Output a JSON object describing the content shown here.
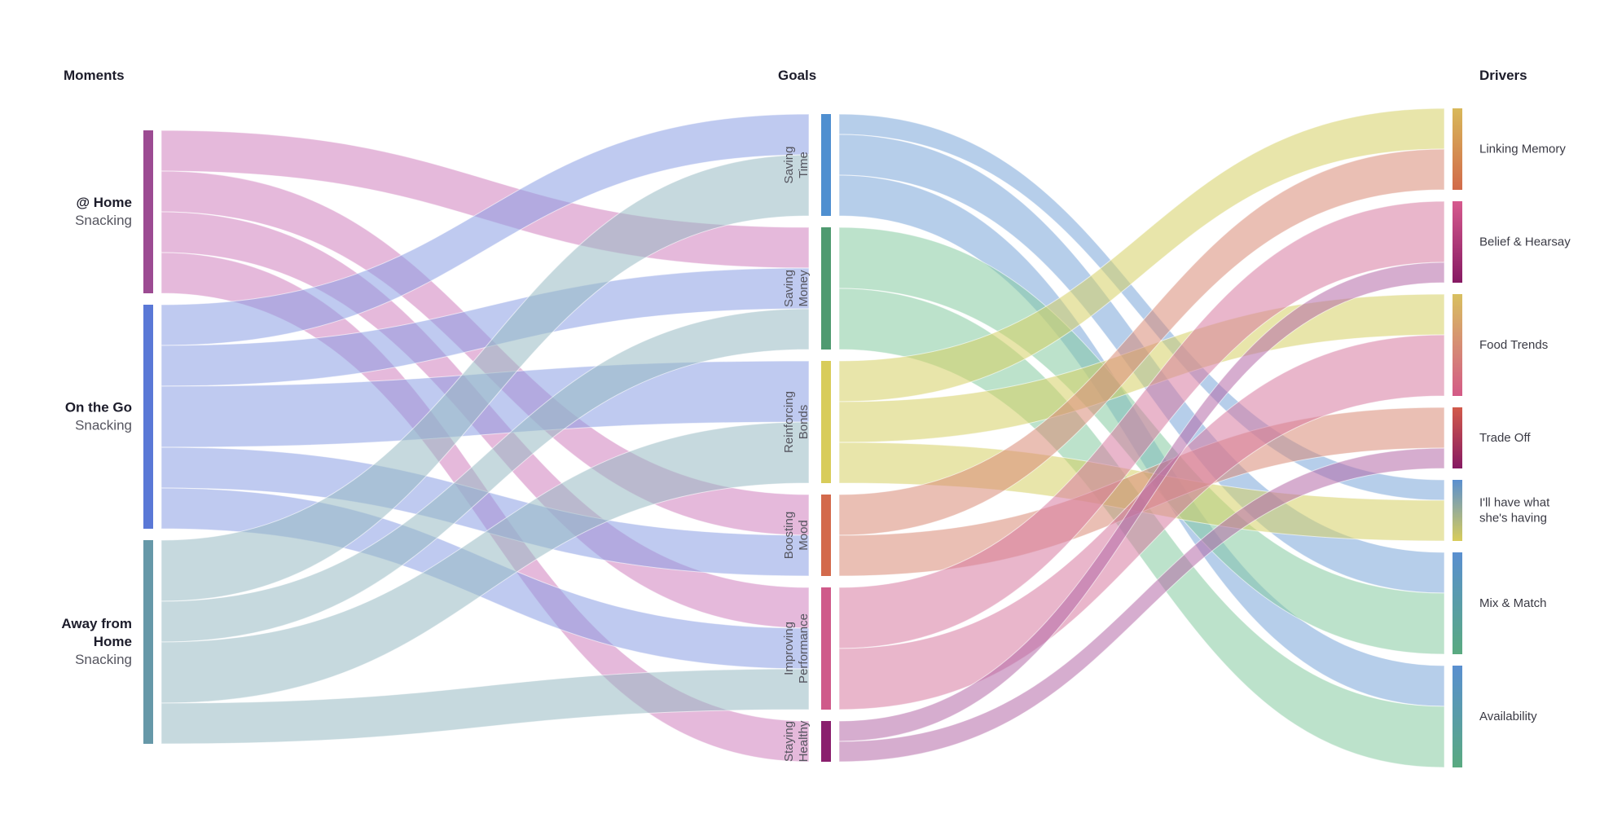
{
  "headers": {
    "moments": "Moments",
    "goals": "Goals",
    "drivers": "Drivers"
  },
  "moments": [
    {
      "id": "home",
      "lines": [
        "@ Home",
        "Snacking"
      ],
      "color": "#9c4b92"
    },
    {
      "id": "go",
      "lines": [
        "On the Go",
        "Snacking"
      ],
      "color": "#5a78d6"
    },
    {
      "id": "away",
      "lines": [
        "Away from",
        "Home",
        "Snacking"
      ],
      "color": "#6698a8"
    }
  ],
  "goals": [
    {
      "id": "time",
      "lines": [
        "Saving",
        "Time"
      ],
      "color": "#4f8fd0"
    },
    {
      "id": "money",
      "lines": [
        "Saving",
        "Money"
      ],
      "color": "#4f9a70"
    },
    {
      "id": "bonds",
      "lines": [
        "Reinforcing",
        "Bonds"
      ],
      "color": "#d8cc5a"
    },
    {
      "id": "mood",
      "lines": [
        "Boosting",
        "Mood"
      ],
      "color": "#d36a4c"
    },
    {
      "id": "perf",
      "lines": [
        "Improving",
        "Performance"
      ],
      "color": "#cf5a8a"
    },
    {
      "id": "health",
      "lines": [
        "Staying",
        "Healthy"
      ],
      "color": "#8a1f6e"
    }
  ],
  "drivers": [
    {
      "id": "linking",
      "lines": [
        "Linking Memory"
      ],
      "colors": [
        "#d8b85a",
        "#d16a4a"
      ]
    },
    {
      "id": "belief",
      "lines": [
        "Belief & Hearsay"
      ],
      "colors": [
        "#d65a8e",
        "#861a63"
      ]
    },
    {
      "id": "trends",
      "lines": [
        "Food Trends"
      ],
      "colors": [
        "#d8c060",
        "#d35a87"
      ]
    },
    {
      "id": "tradeoff",
      "lines": [
        "Trade Off"
      ],
      "colors": [
        "#d25a4a",
        "#861a63"
      ]
    },
    {
      "id": "have",
      "lines": [
        "I'll have what",
        "she's having"
      ],
      "colors": [
        "#5a8fd0",
        "#d8cc5a"
      ]
    },
    {
      "id": "mix",
      "lines": [
        "Mix & Match"
      ],
      "colors": [
        "#5a8fd0",
        "#5aaa80"
      ]
    },
    {
      "id": "avail",
      "lines": [
        "Availability"
      ],
      "colors": [
        "#5a8fd0",
        "#5aaa80"
      ]
    }
  ],
  "flows_left": [
    {
      "from": "home",
      "to": "money",
      "value": 2,
      "color": "#cf7fbd"
    },
    {
      "from": "home",
      "to": "mood",
      "value": 2,
      "color": "#cf7fbd"
    },
    {
      "from": "home",
      "to": "perf",
      "value": 2,
      "color": "#cf7fbd"
    },
    {
      "from": "home",
      "to": "health",
      "value": 2,
      "color": "#cf7fbd"
    },
    {
      "from": "go",
      "to": "time",
      "value": 2,
      "color": "#8a9fe4"
    },
    {
      "from": "go",
      "to": "money",
      "value": 2,
      "color": "#8a9fe4"
    },
    {
      "from": "go",
      "to": "bonds",
      "value": 3,
      "color": "#8a9fe4"
    },
    {
      "from": "go",
      "to": "mood",
      "value": 2,
      "color": "#8a9fe4"
    },
    {
      "from": "go",
      "to": "perf",
      "value": 2,
      "color": "#8a9fe4"
    },
    {
      "from": "away",
      "to": "time",
      "value": 3,
      "color": "#97b9c2"
    },
    {
      "from": "away",
      "to": "money",
      "value": 2,
      "color": "#97b9c2"
    },
    {
      "from": "away",
      "to": "bonds",
      "value": 3,
      "color": "#97b9c2"
    },
    {
      "from": "away",
      "to": "perf",
      "value": 2,
      "color": "#97b9c2"
    }
  ],
  "flows_right": [
    {
      "from": "time",
      "to": "have",
      "value": 1,
      "color": "#7aa6d8"
    },
    {
      "from": "time",
      "to": "mix",
      "value": 2,
      "color": "#7aa6d8"
    },
    {
      "from": "time",
      "to": "avail",
      "value": 2,
      "color": "#7aa6d8"
    },
    {
      "from": "money",
      "to": "mix",
      "value": 3,
      "color": "#85cba0"
    },
    {
      "from": "money",
      "to": "avail",
      "value": 3,
      "color": "#85cba0"
    },
    {
      "from": "bonds",
      "to": "linking",
      "value": 2,
      "color": "#d6d065"
    },
    {
      "from": "bonds",
      "to": "trends",
      "value": 2,
      "color": "#d6d065"
    },
    {
      "from": "bonds",
      "to": "have",
      "value": 2,
      "color": "#d6d065"
    },
    {
      "from": "mood",
      "to": "linking",
      "value": 2,
      "color": "#d98a76"
    },
    {
      "from": "mood",
      "to": "tradeoff",
      "value": 2,
      "color": "#d98a76"
    },
    {
      "from": "perf",
      "to": "belief",
      "value": 3,
      "color": "#d77aa0"
    },
    {
      "from": "perf",
      "to": "trends",
      "value": 3,
      "color": "#d77aa0"
    },
    {
      "from": "health",
      "to": "belief",
      "value": 1,
      "color": "#b56aa8"
    },
    {
      "from": "health",
      "to": "tradeoff",
      "value": 1,
      "color": "#b56aa8"
    }
  ]
}
